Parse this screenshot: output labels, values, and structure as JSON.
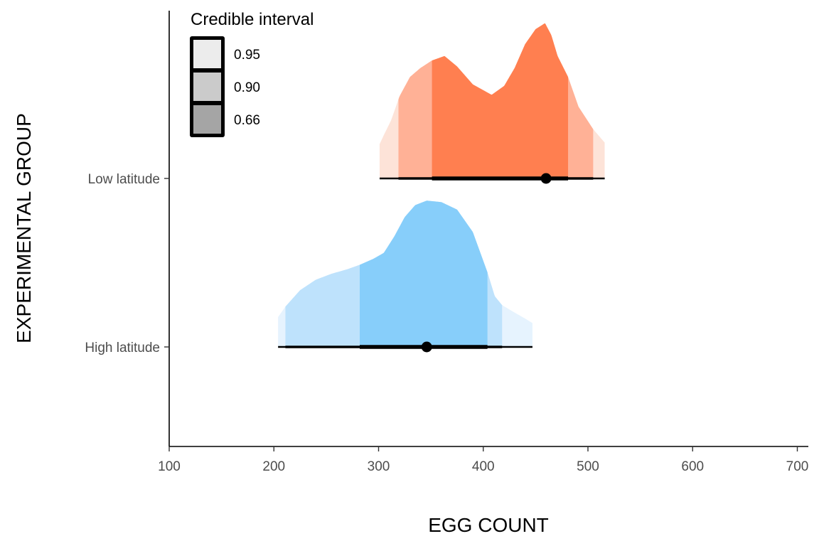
{
  "chart_data": {
    "type": "area",
    "subtype": "half-eye density with credible intervals",
    "xlabel": "EGG COUNT",
    "ylabel": "EXPERIMENTAL GROUP",
    "xlim": [
      100,
      710
    ],
    "x_ticks": [
      100,
      200,
      300,
      400,
      500,
      600,
      700
    ],
    "x_tick_labels": [
      "100",
      "200",
      "300",
      "400",
      "500",
      "600",
      "700"
    ],
    "categories": [
      "Low latitude",
      "High latitude"
    ],
    "legend": {
      "title": "Credible interval",
      "placement": "top-left",
      "entries": [
        {
          "label": "0.95",
          "color": "#ececec"
        },
        {
          "label": "0.90",
          "color": "#cbcbcb"
        },
        {
          "label": "0.66",
          "color": "#a5a5a5"
        }
      ]
    },
    "grid": false,
    "series": [
      {
        "category": "Low latitude",
        "colors": {
          "0.66": "#ff7f50",
          "0.90": "#ffb196",
          "0.95": "#fde3d8"
        },
        "point_estimate": 460,
        "intervals": {
          "0.66": [
            351,
            481
          ],
          "0.90": [
            319,
            505
          ],
          "0.95": [
            301,
            516
          ]
        },
        "density": {
          "x": [
            301,
            305,
            312,
            320,
            330,
            340,
            351,
            363,
            375,
            390,
            408,
            420,
            430,
            440,
            450,
            459,
            465,
            471,
            481,
            491,
            505,
            516
          ],
          "y": [
            0.23,
            0.29,
            0.39,
            0.55,
            0.68,
            0.74,
            0.79,
            0.82,
            0.75,
            0.63,
            0.56,
            0.62,
            0.74,
            0.9,
            1.0,
            1.04,
            0.96,
            0.82,
            0.68,
            0.48,
            0.33,
            0.24
          ]
        }
      },
      {
        "category": "High latitude",
        "colors": {
          "0.66": "#87cefa",
          "0.90": "#bee2fc",
          "0.95": "#e6f3fe"
        },
        "point_estimate": 346,
        "intervals": {
          "0.66": [
            282,
            404
          ],
          "0.90": [
            211,
            418
          ],
          "0.95": [
            204,
            447
          ]
        },
        "density": {
          "x": [
            204,
            211,
            225,
            240,
            255,
            270,
            282,
            295,
            305,
            315,
            325,
            335,
            346,
            360,
            375,
            390,
            404,
            411,
            418,
            430,
            440,
            447
          ],
          "y": [
            0.2,
            0.27,
            0.38,
            0.45,
            0.49,
            0.52,
            0.55,
            0.59,
            0.63,
            0.74,
            0.87,
            0.95,
            0.98,
            0.97,
            0.92,
            0.77,
            0.5,
            0.34,
            0.28,
            0.23,
            0.19,
            0.16
          ]
        }
      }
    ]
  }
}
